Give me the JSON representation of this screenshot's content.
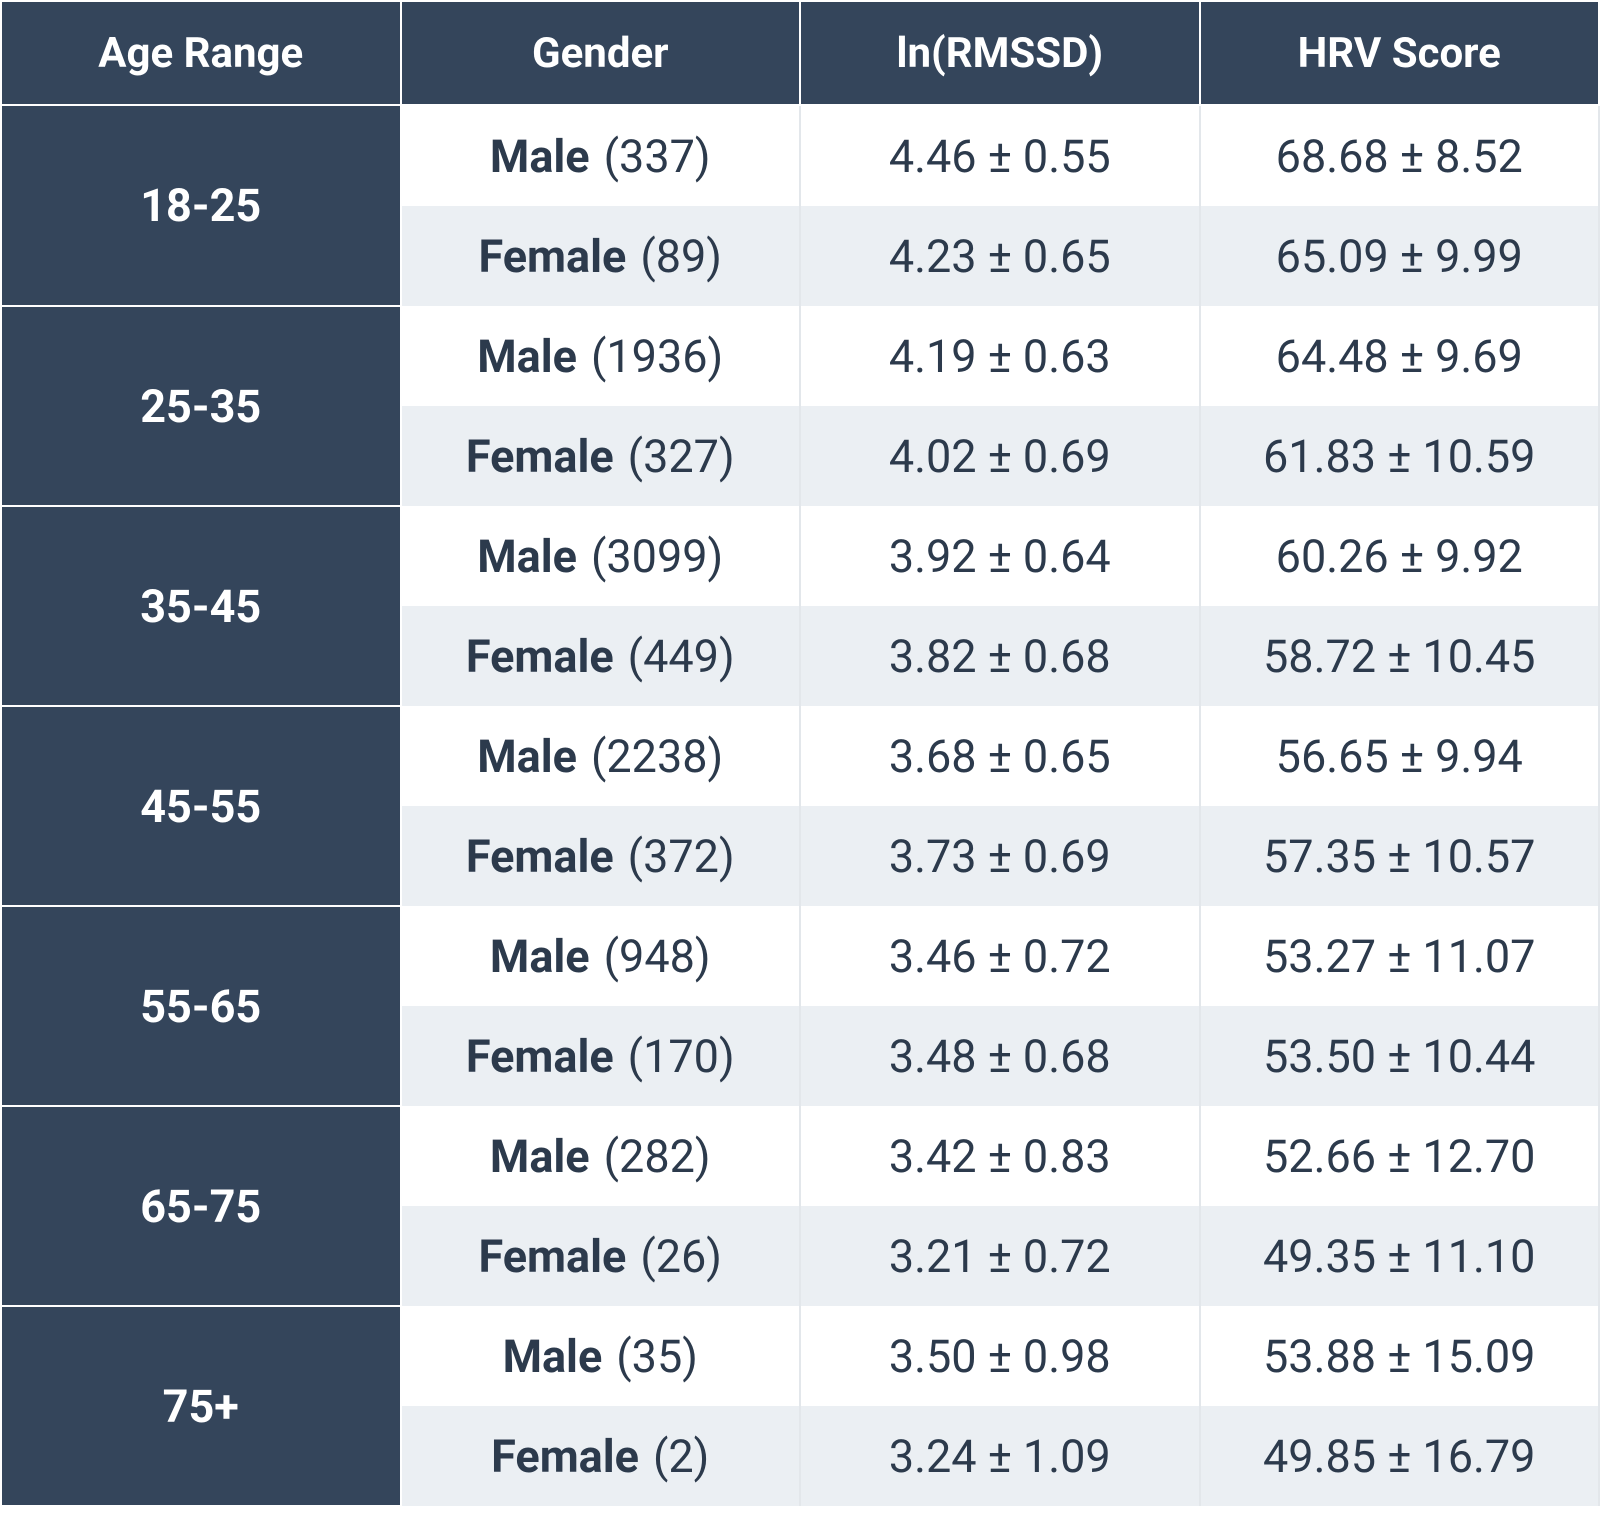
{
  "table": {
    "header": [
      "Age Range",
      "Gender",
      "ln(RMSSD)",
      "HRV Score"
    ],
    "groups": [
      {
        "age": "18-25",
        "rows": [
          {
            "gender": "Male",
            "count": "(337)",
            "ln_rmssd": "4.46 ± 0.55",
            "hrv": "68.68 ± 8.52"
          },
          {
            "gender": "Female",
            "count": "(89)",
            "ln_rmssd": "4.23 ± 0.65",
            "hrv": "65.09 ± 9.99"
          }
        ]
      },
      {
        "age": "25-35",
        "rows": [
          {
            "gender": "Male",
            "count": "(1936)",
            "ln_rmssd": "4.19 ± 0.63",
            "hrv": "64.48 ± 9.69"
          },
          {
            "gender": "Female",
            "count": "(327)",
            "ln_rmssd": "4.02 ± 0.69",
            "hrv": "61.83 ± 10.59"
          }
        ]
      },
      {
        "age": "35-45",
        "rows": [
          {
            "gender": "Male",
            "count": "(3099)",
            "ln_rmssd": "3.92 ± 0.64",
            "hrv": "60.26 ± 9.92"
          },
          {
            "gender": "Female",
            "count": "(449)",
            "ln_rmssd": "3.82 ± 0.68",
            "hrv": "58.72 ± 10.45"
          }
        ]
      },
      {
        "age": "45-55",
        "rows": [
          {
            "gender": "Male",
            "count": "(2238)",
            "ln_rmssd": "3.68 ± 0.65",
            "hrv": "56.65 ± 9.94"
          },
          {
            "gender": "Female",
            "count": "(372)",
            "ln_rmssd": "3.73 ± 0.69",
            "hrv": "57.35 ± 10.57"
          }
        ]
      },
      {
        "age": "55-65",
        "rows": [
          {
            "gender": "Male",
            "count": "(948)",
            "ln_rmssd": "3.46 ± 0.72",
            "hrv": "53.27 ± 11.07"
          },
          {
            "gender": "Female",
            "count": "(170)",
            "ln_rmssd": "3.48 ± 0.68",
            "hrv": "53.50 ± 10.44"
          }
        ]
      },
      {
        "age": "65-75",
        "rows": [
          {
            "gender": "Male",
            "count": "(282)",
            "ln_rmssd": "3.42 ± 0.83",
            "hrv": "52.66 ± 12.70"
          },
          {
            "gender": "Female",
            "count": "(26)",
            "ln_rmssd": "3.21 ± 0.72",
            "hrv": "49.35 ± 11.10"
          }
        ]
      },
      {
        "age": "75+",
        "rows": [
          {
            "gender": "Male",
            "count": "(35)",
            "ln_rmssd": "3.50 ± 0.98",
            "hrv": "53.88 ± 15.09"
          },
          {
            "gender": "Female",
            "count": "(2)",
            "ln_rmssd": "3.24 ± 1.09",
            "hrv": "49.85 ± 16.79"
          }
        ]
      }
    ]
  }
}
